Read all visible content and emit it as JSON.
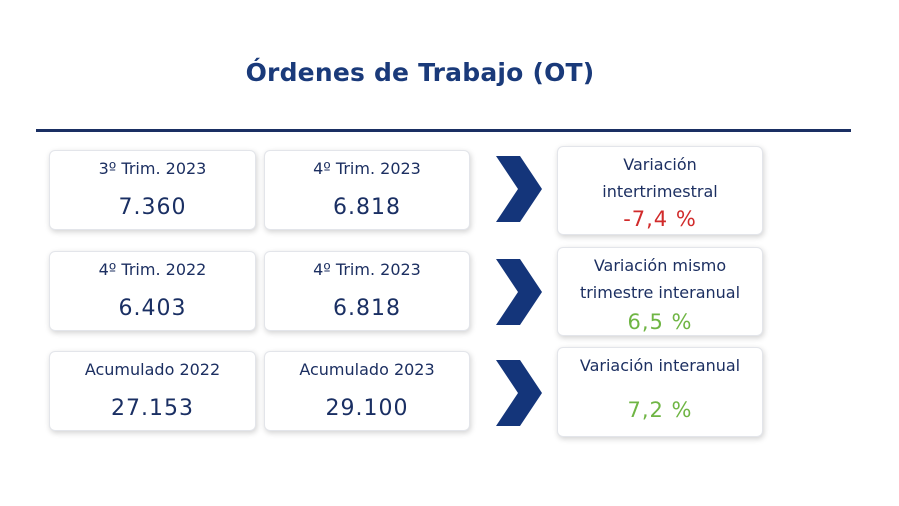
{
  "title": "Órdenes de Trabajo (OT)",
  "rows": [
    {
      "a_label": "3º Trim. 2023",
      "a_value": "7.360",
      "b_label": "4º Trim. 2023",
      "b_value": "6.818",
      "var_label": "Variación intertrimestral",
      "var_value": "-7,4 %",
      "var_sign": "negative"
    },
    {
      "a_label": "4º Trim. 2022",
      "a_value": "6.403",
      "b_label": "4º Trim. 2023",
      "b_value": "6.818",
      "var_label": "Variación mismo trimestre interanual",
      "var_value": "6,5 %",
      "var_sign": "positive"
    },
    {
      "a_label": "Acumulado 2022",
      "a_value": "27.153",
      "b_label": "Acumulado 2023",
      "b_value": "29.100",
      "var_label": "Variación interanual",
      "var_value": "7,2 %",
      "var_sign": "positive"
    }
  ],
  "colors": {
    "primary": "#1a2f63",
    "negative": "#d12b2b",
    "positive": "#6fb544"
  },
  "icons": [
    "chevron-right-icon"
  ]
}
